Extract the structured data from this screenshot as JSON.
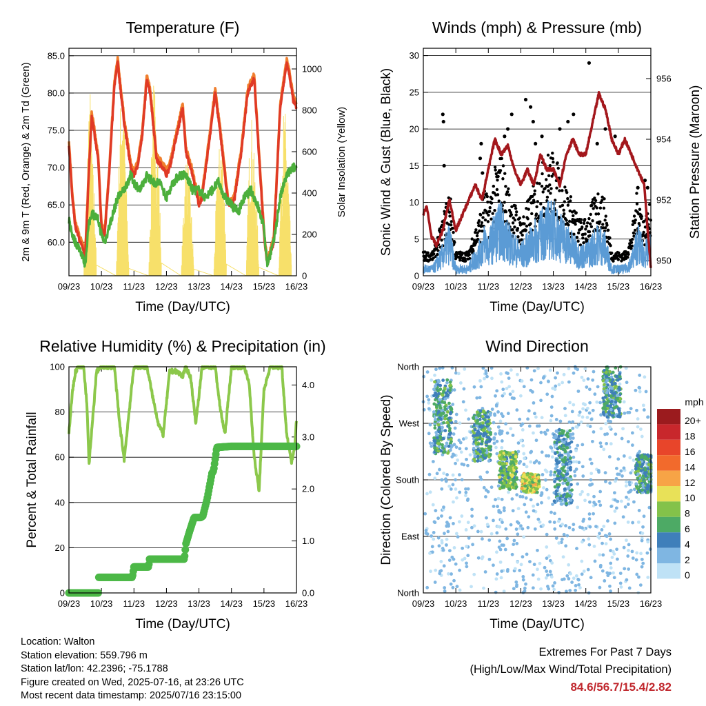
{
  "colors": {
    "temp2m": "#e03a26",
    "temp9m": "#f07f2e",
    "dew": "#4caf3c",
    "solar": "#f7e06a",
    "wind": "#5b9bd5",
    "gust": "#000000",
    "pressure": "#a3171c",
    "rh": "#8cc84b",
    "rain": "#4cb847",
    "extremes": "#c0272d"
  },
  "panels": {
    "temperature": {
      "title": "Temperature (F)",
      "xlabel": "Time (Day/UTC)",
      "ylabel_left": "2m & 9m T (Red, Orange) & 2m Td (Green)",
      "ylabel_right": "Solar Insolation (Yellow)"
    },
    "winds": {
      "title": "Winds (mph) & Pressure (mb)",
      "xlabel": "Time (Day/UTC)",
      "ylabel_left": "Sonic Wind & Gust (Blue, Black)",
      "ylabel_right": "Station Pressure (Maroon)"
    },
    "humidity": {
      "title": "Relative Humidity (%) & Precipitation (in)",
      "xlabel": "Time (Day/UTC)",
      "ylabel_left": "Percent & Total Rainfall"
    },
    "direction": {
      "title": "Wind Direction",
      "xlabel": "Time (Day/UTC)",
      "ylabel_left": "Direction (Colored By Speed)",
      "legend_title": "mph"
    }
  },
  "footer": {
    "location": "Location: Walton",
    "elevation": "Station elevation: 559.796 m",
    "latlon": "Station lat/lon: 42.2396; -75.1788",
    "created": "Figure created on Wed, 2025-07-16, at 23:26 UTC",
    "recent": "Most recent data timestamp: 2025/07/16 23:15:00"
  },
  "extremes": {
    "line1": "Extremes For Past 7 Days",
    "line2": "(High/Low/Max Wind/Total Precipitation)",
    "values": "84.6/56.7/15.4/2.82"
  },
  "chart_data": [
    {
      "type": "line",
      "x_tick_labels": [
        "09/23",
        "10/23",
        "11/23",
        "12/23",
        "13/23",
        "14/23",
        "15/23",
        "16/23"
      ],
      "xlim": [
        0,
        7
      ],
      "ylim_left": [
        55.5,
        86
      ],
      "yticks_left": [
        "60.0",
        "65.0",
        "70.0",
        "75.0",
        "80.0",
        "85.0"
      ],
      "yticks_left_values": [
        60,
        65,
        70,
        75,
        80,
        85
      ],
      "ylim_right": [
        0,
        1100
      ],
      "yticks_right": [
        "0",
        "200",
        "400",
        "600",
        "800",
        "1000"
      ],
      "yticks_right_values": [
        0,
        200,
        400,
        600,
        800,
        1000
      ],
      "series": [
        {
          "key": "temp2m",
          "x": [
            0,
            0.1,
            0.2,
            0.35,
            0.5,
            0.6,
            0.7,
            0.9,
            1.0,
            1.1,
            1.25,
            1.4,
            1.5,
            1.7,
            1.9,
            2.0,
            2.1,
            2.25,
            2.4,
            2.5,
            2.7,
            2.9,
            3.0,
            3.1,
            3.3,
            3.5,
            3.6,
            3.75,
            3.95,
            4.0,
            4.1,
            4.3,
            4.5,
            4.7,
            4.9,
            5.0,
            5.1,
            5.3,
            5.5,
            5.7,
            5.9,
            6.0,
            6.1,
            6.3,
            6.5,
            6.7,
            6.8,
            6.9,
            7.0
          ],
          "y": [
            73,
            66,
            62,
            60,
            58,
            68,
            77,
            71,
            62,
            61,
            70,
            81,
            84,
            76,
            70,
            69,
            70,
            74,
            82,
            80,
            71,
            70,
            69,
            70,
            74,
            78,
            72,
            70,
            66,
            65,
            66,
            73,
            80,
            73,
            65,
            65,
            66,
            72,
            80,
            82,
            68,
            61,
            57,
            60,
            78,
            84,
            82,
            79,
            78
          ]
        },
        {
          "key": "dew",
          "x": [
            0,
            0.1,
            0.2,
            0.35,
            0.5,
            0.6,
            0.7,
            0.9,
            1.0,
            1.1,
            1.3,
            1.5,
            1.7,
            1.9,
            2.0,
            2.2,
            2.4,
            2.6,
            2.8,
            3.0,
            3.2,
            3.4,
            3.6,
            3.8,
            4.0,
            4.2,
            4.4,
            4.6,
            4.8,
            5.0,
            5.2,
            5.4,
            5.6,
            5.8,
            6.0,
            6.1,
            6.3,
            6.5,
            6.7,
            6.9,
            7.0
          ],
          "y": [
            63,
            61,
            60,
            59,
            57,
            62,
            64,
            63,
            61,
            60,
            63,
            66,
            67,
            69,
            68,
            67,
            69,
            68,
            68,
            66,
            68,
            69,
            69,
            67,
            67,
            66,
            67,
            68,
            66,
            65,
            64,
            66,
            67,
            65,
            62,
            57,
            60,
            66,
            69,
            70,
            70
          ]
        },
        {
          "key": "solar",
          "peaks_x": [
            0.55,
            0.62,
            0.75,
            0.8,
            1.55,
            1.62,
            1.7,
            1.78,
            2.5,
            2.58,
            2.7,
            2.78,
            3.5,
            3.6,
            3.7,
            4.5,
            4.62,
            4.75,
            5.45,
            5.58,
            5.7,
            6.45,
            6.55,
            6.65,
            6.75
          ],
          "peaks_y": [
            700,
            1000,
            650,
            900,
            950,
            1050,
            850,
            700,
            900,
            1100,
            750,
            850,
            650,
            700,
            500,
            700,
            650,
            800,
            1000,
            900,
            600,
            1050,
            950,
            800,
            700
          ]
        }
      ]
    },
    {
      "type": "line",
      "x_tick_labels": [
        "09/23",
        "10/23",
        "11/23",
        "12/23",
        "13/23",
        "14/23",
        "15/23",
        "16/23"
      ],
      "xlim": [
        0,
        7
      ],
      "ylim_left": [
        0,
        31
      ],
      "yticks_left": [
        "0",
        "5",
        "10",
        "15",
        "20",
        "25",
        "30"
      ],
      "yticks_left_values": [
        0,
        5,
        10,
        15,
        20,
        25,
        30
      ],
      "ylim_right": [
        949.5,
        957
      ],
      "yticks_right": [
        "950",
        "952",
        "954",
        "956"
      ],
      "yticks_right_values": [
        950,
        952,
        954,
        956
      ],
      "series": [
        {
          "key": "pressure",
          "x": [
            0,
            0.1,
            0.25,
            0.4,
            0.6,
            0.8,
            1.0,
            1.2,
            1.4,
            1.6,
            1.8,
            2.0,
            2.2,
            2.4,
            2.6,
            2.8,
            3.0,
            3.2,
            3.4,
            3.6,
            3.8,
            4.0,
            4.2,
            4.4,
            4.6,
            4.8,
            5.0,
            5.2,
            5.4,
            5.6,
            5.8,
            6.0,
            6.2,
            6.4,
            6.6,
            6.8,
            6.9,
            7.0
          ],
          "y": [
            951.5,
            951.8,
            950.8,
            950.5,
            951.0,
            952.0,
            951.0,
            951.5,
            952.0,
            952.5,
            952.0,
            953.0,
            954.0,
            953.5,
            953.8,
            953.0,
            952.5,
            953.0,
            952.5,
            953.5,
            953.0,
            953.0,
            952.5,
            953.5,
            954.0,
            953.5,
            953.5,
            954.5,
            955.5,
            955.0,
            954.0,
            953.5,
            954.0,
            953.5,
            953.0,
            952.5,
            951.0,
            949.8
          ]
        },
        {
          "key": "wind",
          "x": [
            0,
            0.3,
            0.6,
            0.8,
            1.0,
            1.2,
            1.4,
            1.5,
            1.7,
            1.9,
            2.0,
            2.2,
            2.4,
            2.6,
            2.8,
            3.0,
            3.2,
            3.4,
            3.6,
            3.8,
            4.0,
            4.2,
            4.4,
            4.6,
            4.8,
            5.0,
            5.2,
            5.4,
            5.6,
            5.8,
            6.0,
            6.2,
            6.4,
            6.6,
            6.8,
            7.0
          ],
          "y": [
            1,
            1,
            3,
            5,
            1,
            1,
            1,
            2,
            3,
            5,
            4,
            6,
            7,
            5,
            4,
            3,
            4,
            5,
            6,
            7,
            7,
            6,
            5,
            4,
            3,
            3,
            4,
            5,
            4,
            1,
            1,
            1,
            2,
            5,
            3,
            4
          ]
        },
        {
          "key": "gust",
          "x": [
            0.6,
            0.62,
            0.64,
            1.75,
            1.78,
            1.82,
            2.5,
            2.6,
            2.72,
            3.15,
            3.3,
            3.38,
            3.45,
            3.65,
            4.2,
            4.45,
            4.62,
            5.1,
            5.35,
            5.6,
            5.9,
            6.6,
            6.82,
            6.9
          ],
          "y": [
            22,
            21,
            15,
            16,
            18,
            14,
            19,
            20,
            22,
            24,
            23,
            21,
            18,
            19,
            20,
            21,
            22,
            29,
            18,
            20,
            19,
            12,
            13,
            12
          ]
        }
      ]
    },
    {
      "type": "line",
      "x_tick_labels": [
        "09/23",
        "10/23",
        "11/23",
        "12/23",
        "13/23",
        "14/23",
        "15/23",
        "16/23"
      ],
      "xlim": [
        0,
        7
      ],
      "ylim_left": [
        0,
        100
      ],
      "yticks_left": [
        "0",
        "20",
        "40",
        "60",
        "80",
        "100"
      ],
      "yticks_left_values": [
        0,
        20,
        40,
        60,
        80,
        100
      ],
      "ylim_right": [
        0,
        4.35
      ],
      "yticks_right": [
        "0.0",
        "1.0",
        "2.0",
        "3.0",
        "4.0"
      ],
      "yticks_right_values": [
        0,
        1,
        2,
        3,
        4
      ],
      "series": [
        {
          "key": "rh",
          "x": [
            0,
            0.1,
            0.2,
            0.3,
            0.45,
            0.55,
            0.62,
            0.72,
            0.85,
            1.0,
            1.2,
            1.4,
            1.55,
            1.7,
            1.85,
            2.0,
            2.2,
            2.4,
            2.6,
            2.75,
            2.9,
            3.1,
            3.3,
            3.5,
            3.6,
            3.75,
            3.9,
            4.1,
            4.3,
            4.5,
            4.65,
            4.8,
            5.0,
            5.2,
            5.4,
            5.55,
            5.7,
            5.85,
            6.0,
            6.2,
            6.4,
            6.55,
            6.7,
            6.85,
            6.95,
            7.0
          ],
          "y": [
            71,
            88,
            98,
            100,
            100,
            84,
            57,
            75,
            98,
            100,
            100,
            100,
            76,
            59,
            80,
            100,
            100,
            100,
            85,
            75,
            70,
            98,
            98,
            96,
            100,
            95,
            75,
            100,
            100,
            100,
            82,
            70,
            100,
            100,
            100,
            92,
            60,
            45,
            90,
            100,
            100,
            100,
            70,
            58,
            65,
            76
          ]
        },
        {
          "key": "rain",
          "x": [
            0,
            0.9,
            0.92,
            1.95,
            2.0,
            2.45,
            2.48,
            2.55,
            3.55,
            3.6,
            3.72,
            3.85,
            4.05,
            4.12,
            4.25,
            4.4,
            4.45,
            4.55,
            5.0,
            7.0
          ],
          "y": [
            0,
            0,
            0.3,
            0.3,
            0.5,
            0.5,
            0.65,
            0.65,
            0.65,
            0.95,
            1.2,
            1.45,
            1.45,
            1.48,
            1.8,
            2.3,
            2.35,
            2.8,
            2.82,
            2.82
          ]
        }
      ]
    },
    {
      "type": "scatter",
      "x_tick_labels": [
        "09/23",
        "10/23",
        "11/23",
        "12/23",
        "13/23",
        "14/23",
        "15/23",
        "16/23"
      ],
      "xlim": [
        0,
        7
      ],
      "ylim": [
        0,
        360
      ],
      "yticks": [
        "North",
        "East",
        "South",
        "West",
        "North"
      ],
      "yticks_values": [
        0,
        90,
        180,
        270,
        360
      ],
      "legend": {
        "labels": [
          "20+",
          "18",
          "16",
          "14",
          "12",
          "10",
          "8",
          "6",
          "4",
          "2",
          "0"
        ],
        "colors": [
          "#9b1b1e",
          "#c8272c",
          "#e8452a",
          "#f26a2c",
          "#f7a446",
          "#e8e158",
          "#83c24a",
          "#4daa65",
          "#3f7fba",
          "#7fb6e2",
          "#bfe2f6"
        ]
      },
      "clusters": [
        {
          "x": 0.6,
          "dir": 280,
          "spread": 60,
          "speed": 5
        },
        {
          "x": 1.8,
          "dir": 250,
          "spread": 40,
          "speed": 5
        },
        {
          "x": 2.6,
          "dir": 195,
          "spread": 30,
          "speed": 7
        },
        {
          "x": 3.3,
          "dir": 175,
          "spread": 15,
          "speed": 9
        },
        {
          "x": 4.3,
          "dir": 200,
          "spread": 60,
          "speed": 4
        },
        {
          "x": 5.8,
          "dir": 320,
          "spread": 40,
          "speed": 5
        },
        {
          "x": 6.8,
          "dir": 190,
          "spread": 30,
          "speed": 5
        }
      ]
    }
  ]
}
